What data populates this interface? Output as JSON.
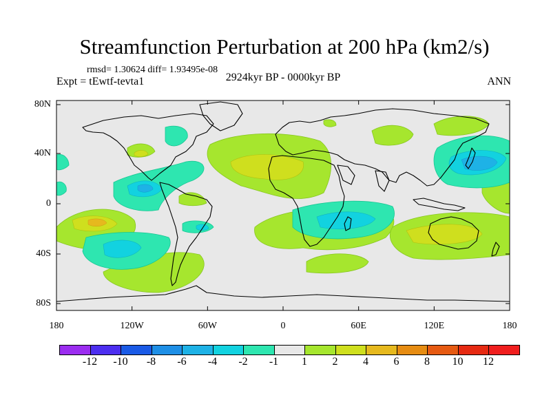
{
  "title": "Streamfunction Perturbation at 200 hPa (km2/s)",
  "stats": "rmsd= 1.30624 diff= 1.93495e-08",
  "experiment": "Expt = tEwtf-tevta1",
  "period": "2924kyr BP - 0000kyr BP",
  "season": "ANN",
  "lat_labels": [
    "80N",
    "40N",
    "0",
    "40S",
    "80S"
  ],
  "lon_labels": [
    "180",
    "120W",
    "60W",
    "0",
    "60E",
    "120E",
    "180"
  ],
  "colorbar": {
    "labels": [
      "-12",
      "-10",
      "-8",
      "-6",
      "-4",
      "-2",
      "-1",
      "1",
      "2",
      "4",
      "6",
      "8",
      "10",
      "12"
    ],
    "colors": [
      "#9b2df0",
      "#4c2ef0",
      "#1a5ae6",
      "#1e8fe6",
      "#1eb2e6",
      "#12d2e0",
      "#2ee6b0",
      "#e8e8e8",
      "#a6e62e",
      "#cfdf1e",
      "#e6b91e",
      "#e68c12",
      "#e65a12",
      "#e62a12",
      "#f01e1e"
    ]
  },
  "map_colors": {
    "land_outline": "#000000",
    "background": "#e8e8e8"
  }
}
